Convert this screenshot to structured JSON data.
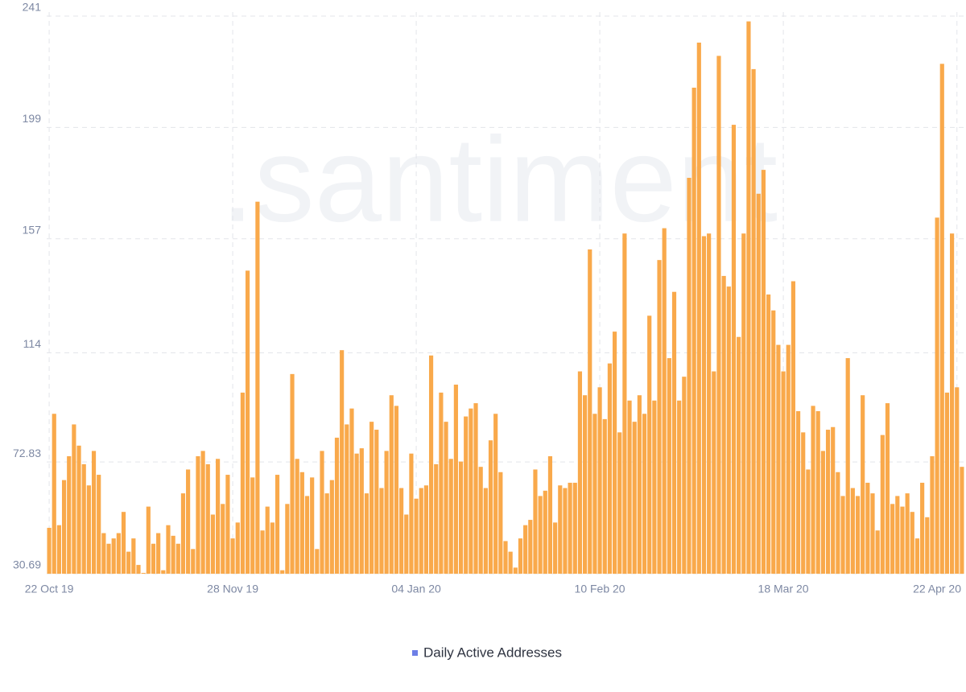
{
  "chart_data": {
    "type": "bar",
    "watermark": ".santiment",
    "series": [
      {
        "name": "Daily Active Addresses",
        "color": "#f9a94b",
        "legend_color": "#6d7fe6",
        "values": [
          48,
          91,
          49,
          66,
          75,
          87,
          79,
          72,
          64,
          77,
          68,
          46,
          42,
          44,
          46,
          54,
          39,
          44,
          34,
          31,
          56,
          42,
          46,
          32,
          49,
          45,
          42,
          61,
          70,
          40,
          75,
          77,
          72,
          53,
          74,
          57,
          68,
          44,
          50,
          99,
          145,
          67,
          171,
          47,
          56,
          50,
          68,
          32,
          57,
          106,
          74,
          69,
          60,
          67,
          40,
          77,
          61,
          66,
          82,
          115,
          87,
          93,
          76,
          78,
          61,
          88,
          85,
          63,
          77,
          98,
          94,
          63,
          53,
          76,
          59,
          63,
          64,
          113,
          72,
          99,
          88,
          74,
          102,
          73,
          90,
          93,
          95,
          71,
          63,
          81,
          91,
          69,
          43,
          39,
          33,
          44,
          49,
          51,
          70,
          60,
          62,
          75,
          50,
          64,
          63,
          65,
          65,
          107,
          98,
          153,
          91,
          101,
          89,
          110,
          122,
          84,
          159,
          96,
          88,
          98,
          91,
          128,
          96,
          149,
          161,
          112,
          137,
          96,
          105,
          180,
          214,
          231,
          158,
          159,
          107,
          226,
          143,
          139,
          200,
          120,
          159,
          239,
          221,
          174,
          183,
          136,
          130,
          117,
          107,
          117,
          141,
          92,
          84,
          70,
          94,
          92,
          77,
          85,
          86,
          69,
          60,
          112,
          63,
          60,
          98,
          65,
          61,
          47,
          83,
          95,
          57,
          60,
          56,
          61,
          54,
          44,
          65,
          52,
          75,
          165,
          223,
          99,
          159,
          101,
          71
        ]
      }
    ],
    "categories": [
      "22 Oct 19",
      null,
      null,
      null,
      null,
      null,
      null,
      null,
      null,
      null,
      null,
      null,
      null,
      null,
      null,
      null,
      null,
      null,
      null,
      null,
      null,
      null,
      null,
      null,
      null,
      null,
      null,
      null,
      null,
      null,
      null,
      null,
      null,
      null,
      null,
      null,
      null,
      "28 Nov 19",
      null,
      null,
      null,
      null,
      null,
      null,
      null,
      null,
      null,
      null,
      null,
      null,
      null,
      null,
      null,
      null,
      null,
      null,
      null,
      null,
      null,
      null,
      null,
      null,
      null,
      null,
      null,
      null,
      null,
      null,
      null,
      null,
      null,
      null,
      null,
      null,
      "04 Jan 20",
      null,
      null,
      null,
      null,
      null,
      null,
      null,
      null,
      null,
      null,
      null,
      null,
      null,
      null,
      null,
      null,
      null,
      null,
      null,
      null,
      null,
      null,
      null,
      null,
      null,
      null,
      null,
      null,
      null,
      null,
      null,
      null,
      null,
      null,
      null,
      null,
      "10 Feb 20",
      null,
      null,
      null,
      null,
      null,
      null,
      null,
      null,
      null,
      null,
      null,
      null,
      null,
      null,
      null,
      null,
      null,
      null,
      null,
      null,
      null,
      null,
      null,
      null,
      null,
      null,
      null,
      null,
      null,
      null,
      null,
      null,
      null,
      null,
      null,
      null,
      "18 Mar 20",
      null,
      null,
      null,
      null,
      null,
      null,
      null,
      null,
      null,
      null,
      null,
      null,
      null,
      null,
      null,
      null,
      null,
      null,
      null,
      null,
      null,
      null,
      null,
      null,
      null,
      null,
      null,
      null,
      null,
      null,
      null,
      null,
      null,
      null,
      "22 Apr 20",
      null
    ],
    "ylim": [
      30.69,
      241
    ],
    "yticks": [
      30.69,
      72.83,
      114,
      157,
      199,
      241
    ],
    "grid": true
  }
}
